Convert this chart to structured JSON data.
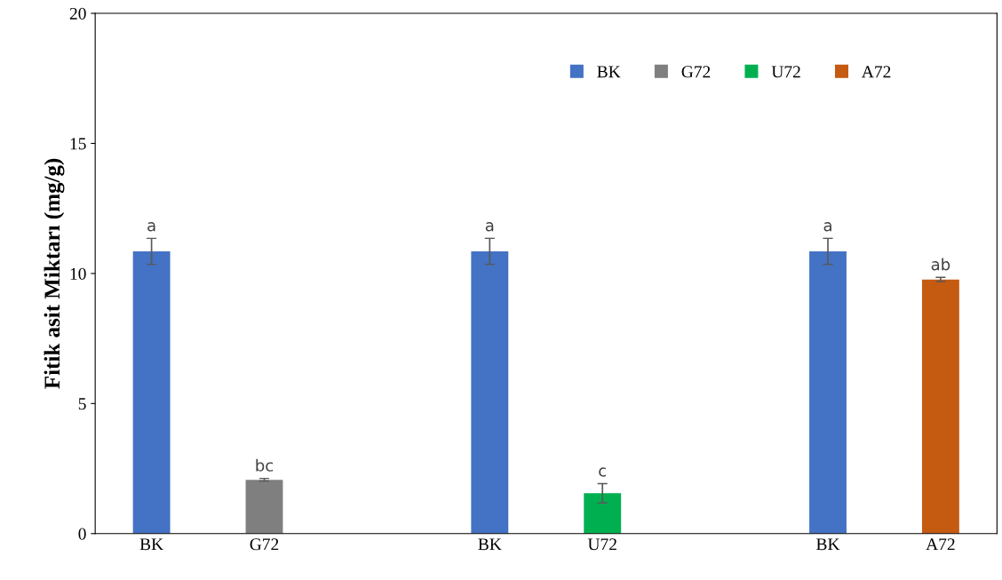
{
  "chart_data": {
    "type": "bar",
    "ylabel": "Fitik asit Miktarı (mg/g)",
    "categories": [
      "BK",
      "G72",
      null,
      "BK",
      "U72",
      null,
      "BK",
      "A72"
    ],
    "series": [
      {
        "name": "BK",
        "color": "#4472c4",
        "values": [
          10.85,
          null,
          null,
          10.85,
          null,
          null,
          10.85,
          null
        ],
        "errors": [
          0.5,
          null,
          null,
          0.5,
          null,
          null,
          0.5,
          null
        ],
        "value_labels": [
          "a",
          null,
          null,
          "a",
          null,
          null,
          "a",
          null
        ]
      },
      {
        "name": "G72",
        "color": "#7f7f7f",
        "values": [
          null,
          2.07,
          null,
          null,
          null,
          null,
          null,
          null
        ],
        "errors": [
          null,
          0.05,
          null,
          null,
          null,
          null,
          null,
          null
        ],
        "value_labels": [
          null,
          "bc",
          null,
          null,
          null,
          null,
          null,
          null
        ]
      },
      {
        "name": "U72",
        "color": "#00b050",
        "values": [
          null,
          null,
          null,
          null,
          1.55,
          null,
          null,
          null
        ],
        "errors": [
          null,
          null,
          null,
          null,
          0.37,
          null,
          null,
          null
        ],
        "value_labels": [
          null,
          null,
          null,
          null,
          "c",
          null,
          null,
          null
        ]
      },
      {
        "name": "A72",
        "color": "#c55a11",
        "values": [
          null,
          null,
          null,
          null,
          null,
          null,
          null,
          9.77
        ],
        "errors": [
          null,
          null,
          null,
          null,
          null,
          null,
          null,
          0.08
        ],
        "value_labels": [
          null,
          null,
          null,
          null,
          null,
          null,
          null,
          "ab"
        ]
      }
    ],
    "ylim": [
      0,
      20
    ],
    "yticks": [
      0,
      5,
      10,
      15,
      20
    ],
    "grid": false,
    "legend": "top right"
  }
}
